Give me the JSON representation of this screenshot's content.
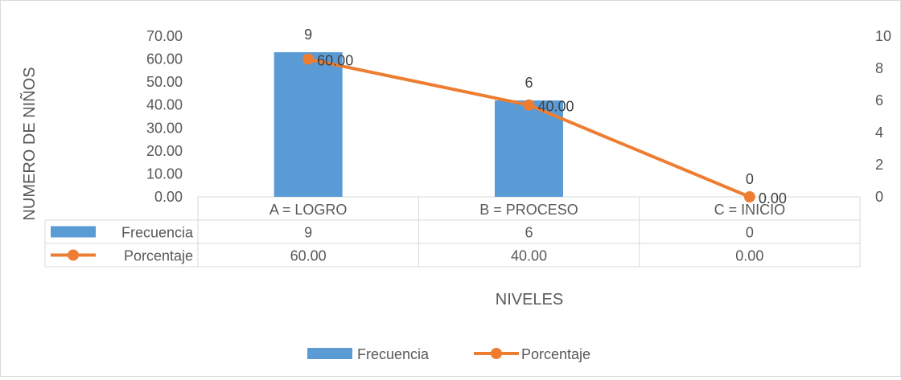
{
  "colors": {
    "bar": "#5b9bd5",
    "line": "#ed7d31",
    "grid": "#d9d9d9",
    "text": "#595959"
  },
  "chart_data": {
    "type": "bar",
    "combo": "bar+line",
    "title": "",
    "xlabel": "NIVELES",
    "ylabel": "NUMERO DE NIÑOS",
    "categories": [
      "A = LOGRO",
      "B = PROCESO",
      "C = INICIO"
    ],
    "series": [
      {
        "name": "Frecuencia",
        "type": "bar",
        "axis": "secondary",
        "values": [
          9,
          6,
          0
        ],
        "labels": [
          "9",
          "6",
          "0"
        ],
        "table_values": [
          "9",
          "6",
          "0"
        ]
      },
      {
        "name": "Porcentaje",
        "type": "line",
        "axis": "primary",
        "values": [
          60.0,
          40.0,
          0.0
        ],
        "labels": [
          "60.00",
          "40.00",
          "0.00"
        ],
        "table_values": [
          "60.00",
          "40.00",
          "0.00"
        ]
      }
    ],
    "primary_axis": {
      "ylim": [
        0,
        70
      ],
      "ticks": [
        "0.00",
        "10.00",
        "20.00",
        "30.00",
        "40.00",
        "50.00",
        "60.00",
        "70.00"
      ]
    },
    "secondary_axis": {
      "ylim": [
        0,
        10
      ],
      "ticks": [
        "0",
        "2",
        "4",
        "6",
        "8",
        "10"
      ]
    },
    "data_table": true,
    "grid": false,
    "legend": "bottom"
  }
}
